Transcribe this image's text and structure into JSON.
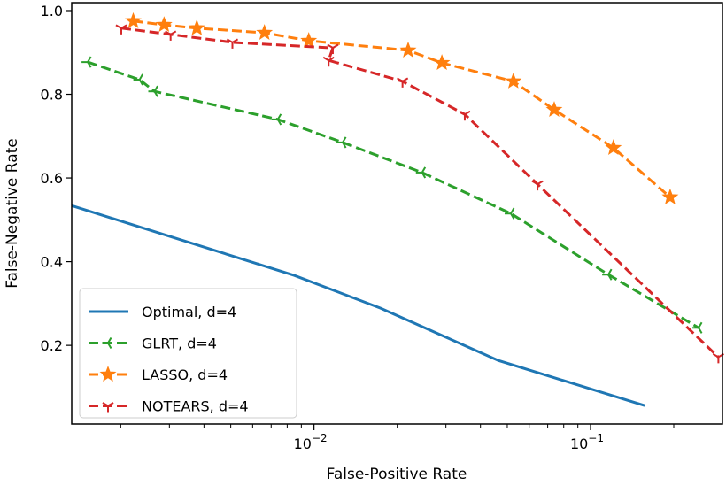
{
  "chart_data": {
    "type": "line",
    "title": "",
    "xlabel": "False-Positive Rate",
    "ylabel": "False-Negative Rate",
    "xscale": "log",
    "xlim": [
      0.00133,
      0.3
    ],
    "ylim": [
      0.012,
      1.019
    ],
    "xticks": [
      {
        "value": 0.01,
        "label": "10",
        "exp": "−2"
      },
      {
        "value": 0.1,
        "label": "10",
        "exp": "−1"
      }
    ],
    "yticks": [
      0.2,
      0.4,
      0.6,
      0.8,
      1.0
    ],
    "ytick_labels": [
      "0.2",
      "0.4",
      "0.6",
      "0.8",
      "1.0"
    ],
    "grid": false,
    "legend_position": "lower-left",
    "series": [
      {
        "name": "Optimal, d=4",
        "color": "#1f77b4",
        "style": "solid",
        "marker": "none",
        "x": [
          0.00133,
          0.0085,
          0.0174,
          0.0464,
          0.157
        ],
        "y": [
          0.534,
          0.367,
          0.289,
          0.164,
          0.056
        ]
      },
      {
        "name": "GLRT, d=4",
        "color": "#2ca02c",
        "style": "dashed",
        "marker": "tri_left",
        "x": [
          0.00152,
          0.00234,
          0.00265,
          0.0074,
          0.0127,
          0.0246,
          0.0515,
          0.116,
          0.246
        ],
        "y": [
          0.877,
          0.835,
          0.807,
          0.74,
          0.685,
          0.613,
          0.515,
          0.369,
          0.242
        ]
      },
      {
        "name": "LASSO, d=4",
        "color": "#ff7f0e",
        "style": "dashed",
        "marker": "star",
        "x": [
          0.00222,
          0.00287,
          0.00377,
          0.00662,
          0.00957,
          0.0219,
          0.029,
          0.0526,
          0.0739,
          0.121,
          0.194
        ],
        "y": [
          0.975,
          0.966,
          0.958,
          0.947,
          0.928,
          0.905,
          0.875,
          0.831,
          0.763,
          0.672,
          0.554
        ]
      },
      {
        "name": "NOTEARS, d=4",
        "color": "#d62728",
        "style": "dashed",
        "marker": "tri_down",
        "x": [
          0.00201,
          0.00303,
          0.00507,
          0.0117,
          0.0113,
          0.0209,
          0.0351,
          0.0643,
          0.29
        ],
        "y": [
          0.958,
          0.943,
          0.924,
          0.911,
          0.881,
          0.831,
          0.752,
          0.585,
          0.172
        ]
      }
    ]
  }
}
